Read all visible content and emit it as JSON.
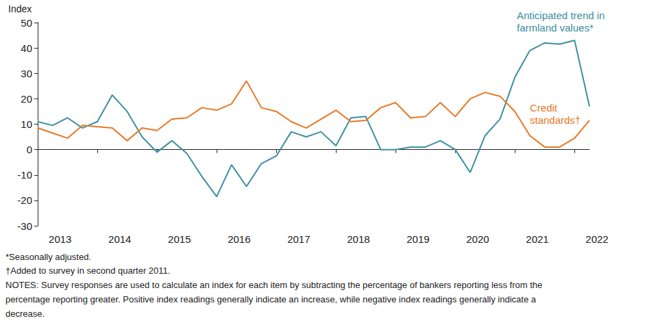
{
  "chart_data": {
    "type": "line",
    "y_axis_label": "Index",
    "categories": [
      null,
      "2013",
      null,
      null,
      null,
      "2014",
      null,
      null,
      null,
      "2015",
      null,
      null,
      null,
      "2016",
      null,
      null,
      null,
      "2017",
      null,
      null,
      null,
      "2018",
      null,
      null,
      null,
      "2019",
      null,
      null,
      null,
      "2020",
      null,
      null,
      null,
      "2021",
      null,
      null,
      null,
      "2022"
    ],
    "series": [
      {
        "name": "Anticipated trend in farmland values*",
        "color": "#3a8fa0",
        "values": [
          11,
          9.5,
          12.5,
          8.5,
          11,
          21.5,
          15,
          5,
          -1,
          3.5,
          -1.5,
          -10.5,
          -18.5,
          -6,
          -14.5,
          -5.5,
          -2.5,
          7,
          5,
          7,
          1.5,
          12.5,
          13,
          0,
          0,
          1,
          1,
          3.5,
          0,
          -9,
          5.5,
          12,
          28.5,
          39,
          42,
          41.5,
          43,
          17
        ]
      },
      {
        "name": "Credit standards†",
        "color": "#e87722",
        "values": [
          8.5,
          6.5,
          4.5,
          9.5,
          9,
          8.5,
          3.5,
          8.5,
          7.5,
          12,
          12.5,
          16.5,
          15.5,
          18,
          27,
          16.5,
          15,
          11,
          8.5,
          12,
          15.5,
          11,
          11.5,
          16.5,
          18.5,
          12.5,
          13,
          18.5,
          13,
          20,
          22.5,
          21,
          15,
          5.5,
          1,
          1,
          4.5,
          11.5
        ]
      }
    ],
    "annotations": [
      {
        "lines": [
          "Anticipated trend in",
          "farmland values*"
        ],
        "series": 0
      },
      {
        "lines": [
          "Credit",
          "standards†"
        ],
        "series": 1
      }
    ],
    "notes": [
      "*Seasonally adjusted.",
      "†Added to survey in second quarter 2011.",
      "NOTES: Survey responses are used to calculate an index for each item by subtracting the percentage of bankers reporting less from the",
      "percentage reporting greater. Positive index readings generally indicate an increase, while negative index readings generally indicate a",
      "decrease."
    ],
    "ylim": [
      -30,
      50
    ],
    "yticks": [
      -30,
      -20,
      -10,
      0,
      10,
      20,
      30,
      40,
      50
    ],
    "grid": false
  }
}
